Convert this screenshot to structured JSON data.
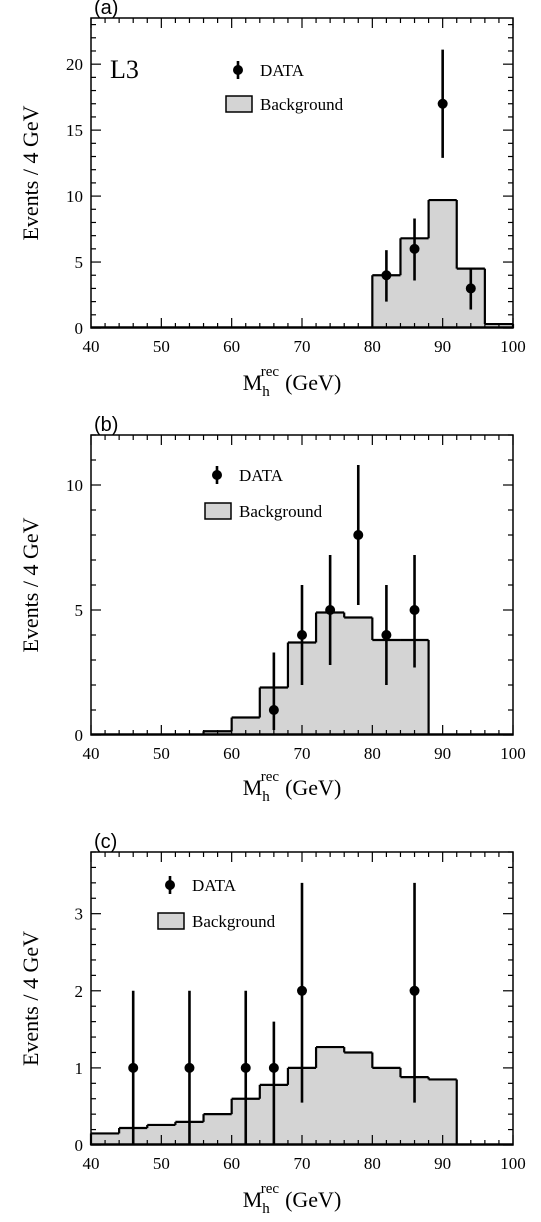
{
  "chart_data": [
    {
      "type": "histogram",
      "panel_label": "(a)",
      "experiment_label": "L3",
      "ylabel": "Events / 4 GeV",
      "xlabel_main": "M",
      "xlabel_sub": "h",
      "xlabel_sup": "rec",
      "xlabel_unit": "(GeV)",
      "xlim": [
        40,
        100
      ],
      "ylim": [
        0,
        23.5
      ],
      "x_ticks": [
        40,
        50,
        60,
        70,
        80,
        90,
        100
      ],
      "y_ticks": [
        0,
        5,
        10,
        15,
        20
      ],
      "legend": {
        "data_label": "DATA",
        "background_label": "Background",
        "position": "top-center"
      },
      "background": {
        "name": "Background",
        "bin_edges": [
          80,
          84,
          88,
          92,
          96,
          100
        ],
        "values": [
          4.0,
          6.8,
          9.7,
          4.5,
          0.3
        ]
      },
      "data": {
        "name": "DATA",
        "x": [
          82,
          86,
          90,
          94
        ],
        "y": [
          4,
          6,
          17,
          3
        ],
        "err_low": [
          2.0,
          2.4,
          4.1,
          1.6
        ],
        "err_high": [
          1.9,
          2.3,
          4.1,
          1.5
        ]
      },
      "fill_color": "#d4d4d4"
    },
    {
      "type": "histogram",
      "panel_label": "(b)",
      "experiment_label": "",
      "ylabel": "Events / 4 GeV",
      "xlabel_main": "M",
      "xlabel_sub": "h",
      "xlabel_sup": "rec",
      "xlabel_unit": "(GeV)",
      "xlim": [
        40,
        100
      ],
      "ylim": [
        0,
        12
      ],
      "x_ticks": [
        40,
        50,
        60,
        70,
        80,
        90,
        100
      ],
      "y_ticks": [
        0,
        5,
        10
      ],
      "legend": {
        "data_label": "DATA",
        "background_label": "Background",
        "position": "top-center"
      },
      "background": {
        "name": "Background",
        "bin_edges": [
          56,
          60,
          64,
          68,
          72,
          76,
          80,
          84,
          88
        ],
        "values": [
          0.15,
          0.7,
          1.9,
          3.7,
          4.9,
          4.7,
          3.8,
          3.8
        ]
      },
      "data": {
        "name": "DATA",
        "x": [
          66,
          70,
          74,
          78,
          82,
          86
        ],
        "y": [
          1,
          4,
          5,
          8,
          4,
          5
        ],
        "err_low": [
          0.8,
          2.0,
          2.2,
          2.8,
          2.0,
          2.3
        ],
        "err_high": [
          2.3,
          2.0,
          2.2,
          2.8,
          2.0,
          2.2
        ]
      },
      "fill_color": "#d4d4d4"
    },
    {
      "type": "histogram",
      "panel_label": "(c)",
      "experiment_label": "",
      "ylabel": "Events / 4 GeV",
      "xlabel_main": "M",
      "xlabel_sub": "h",
      "xlabel_sup": "rec",
      "xlabel_unit": "(GeV)",
      "xlim": [
        40,
        100
      ],
      "ylim": [
        0,
        3.8
      ],
      "x_ticks": [
        40,
        50,
        60,
        70,
        80,
        90,
        100
      ],
      "y_ticks": [
        0,
        1,
        2,
        3
      ],
      "legend": {
        "data_label": "DATA",
        "background_label": "Background",
        "position": "top-center"
      },
      "background": {
        "name": "Background",
        "bin_edges": [
          40,
          44,
          48,
          52,
          56,
          60,
          64,
          68,
          72,
          76,
          80,
          84,
          88,
          92
        ],
        "values": [
          0.15,
          0.22,
          0.26,
          0.3,
          0.4,
          0.6,
          0.78,
          1.0,
          1.27,
          1.2,
          1.0,
          0.88,
          0.85
        ]
      },
      "data": {
        "name": "DATA",
        "x": [
          46,
          54,
          62,
          66,
          70,
          86
        ],
        "y": [
          1,
          1,
          1,
          1,
          2,
          2
        ],
        "err_low": [
          1.0,
          1.0,
          1.0,
          1.0,
          1.45,
          1.45
        ],
        "err_high": [
          1.0,
          1.0,
          1.0,
          0.6,
          1.4,
          1.4
        ]
      },
      "fill_color": "#d4d4d4"
    }
  ]
}
